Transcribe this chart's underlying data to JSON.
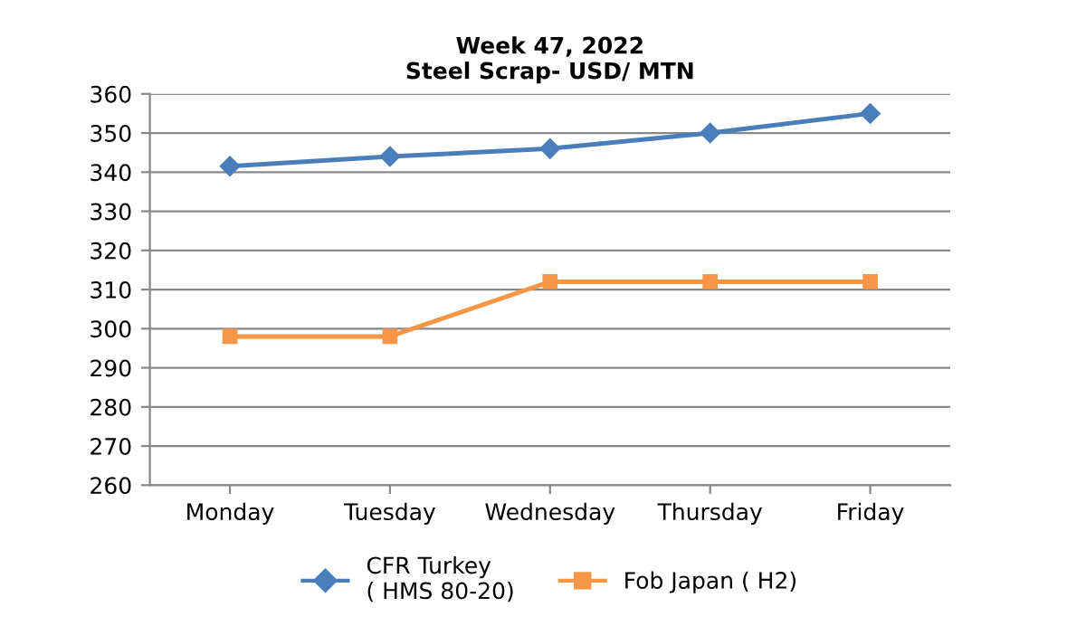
{
  "chart_data": {
    "type": "line",
    "title": "Week 47, 2022\nSteel Scrap- USD/ MTN",
    "categories": [
      "Monday",
      "Tuesday",
      "Wednesday",
      "Thursday",
      "Friday"
    ],
    "series": [
      {
        "name": "CFR Turkey\n( HMS 80-20)",
        "color": "#4a7ebb",
        "marker": "diamond",
        "values": [
          341.5,
          344,
          346,
          350,
          355
        ]
      },
      {
        "name": "Fob Japan ( H2)",
        "color": "#f79646",
        "marker": "square",
        "values": [
          298,
          298,
          312,
          312,
          312
        ]
      }
    ],
    "ylim": [
      260,
      360
    ],
    "yticks": [
      260,
      270,
      280,
      290,
      300,
      310,
      320,
      330,
      340,
      350,
      360
    ],
    "grid": "y",
    "legend": "bottom"
  }
}
